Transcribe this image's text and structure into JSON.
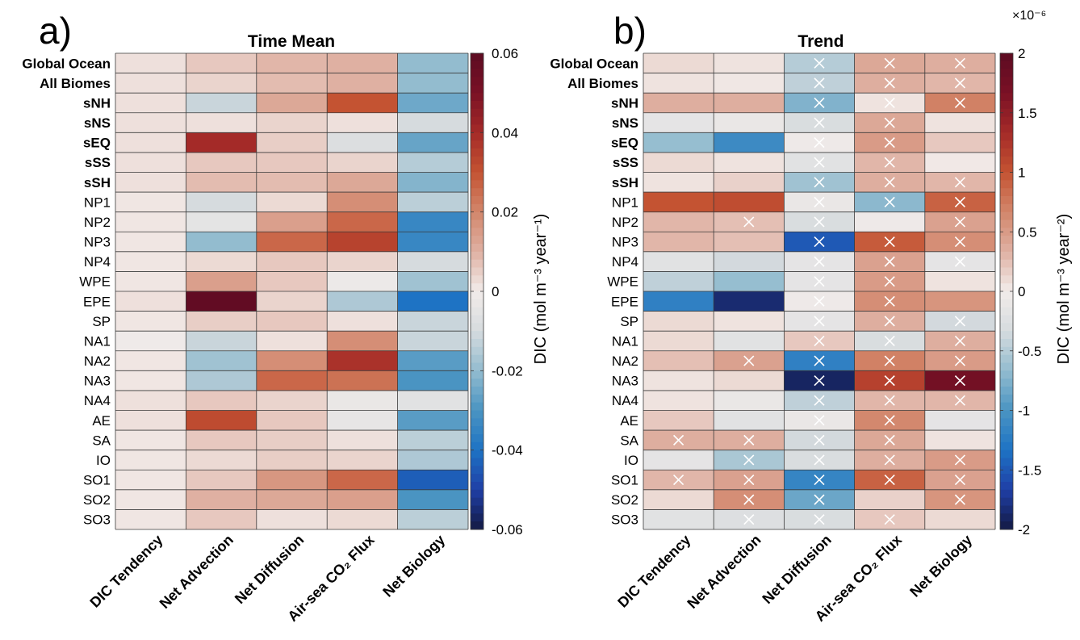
{
  "chart_data": [
    {
      "type": "heatmap",
      "panel_label": "a)",
      "title": "Time Mean",
      "rows": [
        "Global Ocean",
        "All Biomes",
        "sNH",
        "sNS",
        "sEQ",
        "sSS",
        "sSH",
        "NP1",
        "NP2",
        "NP3",
        "NP4",
        "WPE",
        "EPE",
        "SP",
        "NA1",
        "NA2",
        "NA3",
        "NA4",
        "AE",
        "SA",
        "IO",
        "SO1",
        "SO2",
        "SO3"
      ],
      "bold_rows": [
        "Global Ocean",
        "All Biomes",
        "sNH",
        "sNS",
        "sEQ",
        "sSS",
        "sSH"
      ],
      "columns": [
        "DIC Tendency",
        "Net Advection",
        "Net Diffusion",
        "Air-sea CO₂ Flux",
        "Net Biology"
      ],
      "values": [
        [
          0.002,
          0.006,
          0.009,
          0.01,
          -0.02
        ],
        [
          0.002,
          0.004,
          0.008,
          0.01,
          -0.02
        ],
        [
          0.002,
          -0.012,
          0.012,
          0.03,
          -0.025
        ],
        [
          0.002,
          0.002,
          0.004,
          0.002,
          -0.01
        ],
        [
          0.002,
          0.04,
          0.005,
          -0.008,
          -0.026
        ],
        [
          0.002,
          0.006,
          0.006,
          0.004,
          -0.015
        ],
        [
          0.002,
          0.008,
          0.008,
          0.012,
          -0.022
        ],
        [
          0.001,
          -0.01,
          0.003,
          0.018,
          -0.014
        ],
        [
          0.001,
          -0.005,
          0.014,
          0.026,
          -0.034
        ],
        [
          0.001,
          -0.02,
          0.026,
          0.034,
          -0.034
        ],
        [
          0.001,
          0.003,
          0.006,
          0.004,
          -0.01
        ],
        [
          0.001,
          0.014,
          0.006,
          -0.002,
          -0.018
        ],
        [
          0.002,
          0.058,
          0.004,
          -0.016,
          -0.04
        ],
        [
          0.001,
          0.005,
          0.006,
          0.002,
          -0.012
        ],
        [
          -0.001,
          -0.012,
          0.002,
          0.018,
          -0.012
        ],
        [
          0.001,
          -0.018,
          0.018,
          0.038,
          -0.028
        ],
        [
          0.001,
          -0.016,
          0.026,
          0.024,
          -0.03
        ],
        [
          0.002,
          0.006,
          0.004,
          -0.003,
          -0.006
        ],
        [
          0.002,
          0.032,
          0.006,
          -0.004,
          -0.028
        ],
        [
          0.001,
          0.006,
          0.005,
          0.002,
          -0.014
        ],
        [
          0.001,
          0.003,
          0.005,
          0.004,
          -0.016
        ],
        [
          0.001,
          0.006,
          0.016,
          0.026,
          -0.044
        ],
        [
          0.001,
          0.01,
          0.012,
          0.014,
          -0.03
        ],
        [
          0.001,
          0.006,
          0.002,
          0.003,
          -0.014
        ]
      ],
      "colorbar": {
        "label": "DIC (mol m⁻³ year⁻¹)",
        "range": [
          -0.06,
          0.06
        ],
        "ticks": [
          -0.06,
          -0.04,
          -0.02,
          0,
          0.02,
          0.04,
          0.06
        ],
        "tick_labels": [
          "-0.06",
          "-0.04",
          "-0.02",
          "0",
          "0.02",
          "0.04",
          "0.06"
        ]
      }
    },
    {
      "type": "heatmap",
      "panel_label": "b)",
      "title": "Trend",
      "rows": [
        "Global Ocean",
        "All Biomes",
        "sNH",
        "sNS",
        "sEQ",
        "sSS",
        "sSH",
        "NP1",
        "NP2",
        "NP3",
        "NP4",
        "WPE",
        "EPE",
        "SP",
        "NA1",
        "NA2",
        "NA3",
        "NA4",
        "AE",
        "SA",
        "IO",
        "SO1",
        "SO2",
        "SO3"
      ],
      "bold_rows": [
        "Global Ocean",
        "All Biomes",
        "sNH",
        "sNS",
        "sEQ",
        "sSS",
        "sSH"
      ],
      "columns": [
        "DIC Tendency",
        "Net Advection",
        "Net Diffusion",
        "Air-sea CO₂ Flux",
        "Net Biology"
      ],
      "values": [
        [
          0.1,
          0.05,
          -0.5,
          0.4,
          0.35
        ],
        [
          0.05,
          0.03,
          -0.45,
          0.35,
          0.3
        ],
        [
          0.35,
          0.35,
          -0.75,
          0.05,
          0.7
        ],
        [
          -0.15,
          -0.1,
          -0.3,
          0.4,
          0.05
        ],
        [
          -0.65,
          -1.1,
          -0.05,
          0.5,
          0.2
        ],
        [
          0.1,
          0.05,
          -0.2,
          0.3,
          0.02
        ],
        [
          0.05,
          0.15,
          -0.6,
          0.35,
          0.3
        ],
        [
          1.0,
          1.05,
          -0.1,
          -0.7,
          0.9
        ],
        [
          0.3,
          0.25,
          -0.3,
          -0.05,
          0.45
        ],
        [
          0.3,
          0.25,
          -1.5,
          0.95,
          0.6
        ],
        [
          -0.2,
          -0.35,
          -0.15,
          0.45,
          -0.15
        ],
        [
          -0.45,
          -0.65,
          -0.15,
          0.5,
          0.05
        ],
        [
          -1.2,
          -1.85,
          -0.05,
          0.6,
          0.55
        ],
        [
          0.1,
          0.05,
          -0.15,
          0.35,
          -0.35
        ],
        [
          0.1,
          -0.2,
          0.2,
          -0.3,
          0.35
        ],
        [
          0.25,
          0.45,
          -1.2,
          0.7,
          0.5
        ],
        [
          0.05,
          0.1,
          -1.9,
          1.15,
          1.75
        ],
        [
          0.05,
          -0.1,
          -0.45,
          0.3,
          0.3
        ],
        [
          0.2,
          -0.2,
          -0.1,
          0.65,
          -0.15
        ],
        [
          0.35,
          0.35,
          -0.35,
          0.4,
          0.05
        ],
        [
          -0.15,
          -0.55,
          -0.3,
          0.35,
          0.5
        ],
        [
          0.3,
          0.45,
          -1.15,
          0.9,
          0.45
        ],
        [
          0.1,
          0.6,
          -0.85,
          0.15,
          0.55
        ],
        [
          -0.2,
          -0.25,
          -0.3,
          0.2,
          0.1
        ]
      ],
      "x_marked": [
        [
          false,
          false,
          true,
          true,
          true
        ],
        [
          false,
          false,
          true,
          true,
          true
        ],
        [
          false,
          false,
          true,
          true,
          true
        ],
        [
          false,
          false,
          true,
          true,
          false
        ],
        [
          false,
          false,
          true,
          true,
          false
        ],
        [
          false,
          false,
          true,
          true,
          false
        ],
        [
          false,
          false,
          true,
          true,
          true
        ],
        [
          false,
          false,
          true,
          true,
          true
        ],
        [
          false,
          true,
          true,
          false,
          true
        ],
        [
          false,
          false,
          true,
          true,
          true
        ],
        [
          false,
          false,
          true,
          true,
          true
        ],
        [
          false,
          false,
          true,
          true,
          false
        ],
        [
          false,
          false,
          true,
          true,
          false
        ],
        [
          false,
          false,
          true,
          true,
          true
        ],
        [
          false,
          false,
          true,
          true,
          true
        ],
        [
          false,
          true,
          true,
          true,
          true
        ],
        [
          false,
          false,
          true,
          true,
          true
        ],
        [
          false,
          false,
          true,
          true,
          true
        ],
        [
          false,
          false,
          true,
          true,
          false
        ],
        [
          true,
          true,
          true,
          true,
          false
        ],
        [
          false,
          true,
          true,
          true,
          true
        ],
        [
          true,
          true,
          true,
          true,
          true
        ],
        [
          false,
          true,
          true,
          false,
          true
        ],
        [
          false,
          true,
          true,
          true,
          false
        ]
      ],
      "colorbar": {
        "label": "DIC (mol m⁻³ year⁻²)",
        "multiplier": "×10⁻⁶",
        "range": [
          -2,
          2
        ],
        "ticks": [
          -2,
          -1.5,
          -1,
          -0.5,
          0,
          0.5,
          1,
          1.5,
          2
        ],
        "tick_labels": [
          "-2",
          "-1.5",
          "-1",
          "-0.5",
          "0",
          "0.5",
          "1",
          "1.5",
          "2"
        ]
      }
    }
  ],
  "colors": {
    "colormap": [
      "#141a44",
      "#1f3fa6",
      "#1e73c4",
      "#4a94c2",
      "#93bccf",
      "#d6dbde",
      "#f2ecea",
      "#dfb0a2",
      "#d2866b",
      "#c45332",
      "#a42a28",
      "#7a1125",
      "#5c0b22"
    ],
    "gridline": "#3a3a3a",
    "mark": "#ffffff"
  }
}
